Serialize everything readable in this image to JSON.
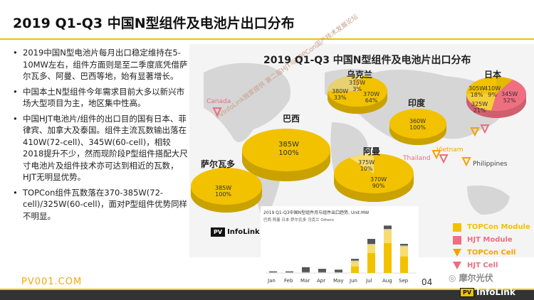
{
  "slide": {
    "title": "2019 Q1-Q3 中国N型组件及电池片出口分布",
    "page_number": "04",
    "site": "PV001.COM",
    "wechat": "摩尔光伏",
    "logo_text": "InfoLink",
    "logo_badge": "PV"
  },
  "bullets": [
    "2019中国N型电池片每月出口稳定维持在5-10MW左右，组件方面则是至二季度底凭借萨尔瓦多、阿曼、巴西等地，始有显著增长。",
    "中国本土N型组件今年需求目前大多以新兴市场大型项目为主，地区集中性高。",
    "中国HJT电池片/组件的出口目的国有日本、菲律宾、加拿大及泰国。组件主流瓦数输出落在410W(72-cell)、345W(60-cell)，相较2018提升不少，然而现阶段P型组件搭配大尺寸电池片及组件技术亦可达到相近的瓦数，HJT无明显优势。",
    "TOPCon组件瓦数落在370-385W(72-cell)/325W(60-cell)，面对P型组件优势同样不明显。"
  ],
  "map": {
    "title": "2019 Q1-Q3 中国N型组件及电池片出口分布",
    "watermark": "PVInfoLink独家提供 第二届HJT与TOPCon国产技术发展论坛",
    "countries": {
      "ukraine": "乌克兰",
      "japan": "日本",
      "brazil": "巴西",
      "india": "印度",
      "oman": "阿曼",
      "el_salvador": "萨尔瓦多"
    },
    "markers": {
      "canada": "Canada",
      "thailand": "Thailand",
      "vietnam": "Vietnam",
      "philippines": "Philippines"
    },
    "pies": {
      "ukraine": [
        {
          "label": "315W",
          "pct": "3%"
        },
        {
          "label": "380W",
          "pct": "33%"
        },
        {
          "label": "370W",
          "pct": "64%"
        }
      ],
      "japan": [
        {
          "label": "305W",
          "pct": "18%"
        },
        {
          "label": "410W",
          "pct": "9%"
        },
        {
          "label": "325W",
          "pct": "21%"
        },
        {
          "label": "345W",
          "pct": "52%"
        }
      ],
      "brazil": [
        {
          "label": "385W",
          "pct": "100%"
        }
      ],
      "india": [
        {
          "label": "360W",
          "pct": "100%"
        }
      ],
      "oman": [
        {
          "label": "375W",
          "pct": "10%"
        },
        {
          "label": "370W",
          "pct": "90%"
        }
      ],
      "el_salvador": [
        {
          "label": "385W",
          "pct": "100%"
        }
      ]
    },
    "colors": {
      "topcon_module": "#f2c200",
      "hjt_module": "#ef6f80",
      "topcon_cell": "#f4a300",
      "hjt_cell": "#e8707e"
    }
  },
  "legend": [
    {
      "label": "TOPCon Module",
      "kind": "square",
      "color": "#f2c200"
    },
    {
      "label": "HJT Module",
      "kind": "square",
      "color": "#ef6f80"
    },
    {
      "label": "TOPCon Cell",
      "kind": "triangle",
      "color": "#f4a300"
    },
    {
      "label": "HJT Cell",
      "kind": "triangle",
      "color": "#e8707e"
    }
  ],
  "chart_data": {
    "type": "bar",
    "title": "2019 Q1-Q3中国N型组件月与组件出口趋势, Unit:MW",
    "legend": [
      "巴西",
      "阿曼",
      "日本",
      "萨尔瓦多",
      "乌克兰",
      "Others"
    ],
    "categories": [
      "Jan",
      "Feb",
      "Mar",
      "Apr",
      "May",
      "Jun",
      "Jul",
      "Aug",
      "Sep"
    ],
    "series": [
      {
        "name": "巴西",
        "color": "#f2c200",
        "values": [
          0,
          0,
          0,
          0,
          0,
          4,
          12,
          18,
          10
        ]
      },
      {
        "name": "阿曼",
        "color": "#f7dc6f",
        "values": [
          0,
          0,
          0,
          0,
          0,
          3,
          5,
          8,
          6
        ]
      },
      {
        "name": "日本",
        "color": "#bdbdbd",
        "values": [
          0.5,
          0.5,
          0.5,
          0.5,
          0.5,
          0.5,
          0.5,
          0.5,
          0.5
        ]
      },
      {
        "name": "萨尔瓦多",
        "color": "#e0b000",
        "values": [
          0,
          0,
          0,
          0,
          0,
          0,
          0,
          0,
          0
        ]
      },
      {
        "name": "乌克兰",
        "color": "#fff0b3",
        "values": [
          0,
          0,
          0,
          0,
          0,
          0,
          0,
          0,
          0
        ]
      },
      {
        "name": "Others",
        "color": "#555555",
        "values": [
          0.5,
          0.5,
          3,
          2,
          1.5,
          1,
          3,
          2,
          1
        ]
      }
    ]
  }
}
